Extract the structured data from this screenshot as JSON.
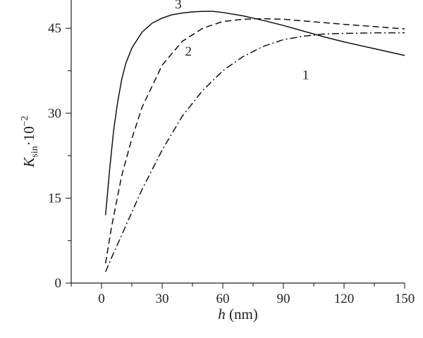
{
  "chart_data": {
    "type": "line",
    "xlabel": {
      "var": "h",
      "unit": " (nm)"
    },
    "ylabel": {
      "var": "K",
      "sub": "sin",
      "mult": "·10",
      "sup": "−2"
    },
    "xlim": [
      -15,
      150
    ],
    "ylim": [
      0,
      50
    ],
    "x_ticks": [
      0,
      30,
      60,
      90,
      120,
      150
    ],
    "y_ticks": [
      0,
      15,
      30,
      45
    ],
    "minor_ticks": true,
    "grid": false,
    "legend": "none",
    "series": [
      {
        "name": "1",
        "style": "dashdot",
        "x": [
          2,
          5,
          10,
          15,
          20,
          30,
          40,
          50,
          60,
          70,
          80,
          90,
          100,
          110,
          120,
          135,
          150
        ],
        "y": [
          2,
          4.5,
          8.5,
          12.5,
          16.5,
          23.5,
          29.5,
          34,
          37.5,
          40,
          41.8,
          43,
          43.6,
          44,
          44.1,
          44.2,
          44.2
        ]
      },
      {
        "name": "2",
        "style": "dashed",
        "x": [
          2,
          5,
          10,
          15,
          20,
          30,
          40,
          50,
          60,
          70,
          80,
          90,
          100,
          110,
          120,
          135,
          150
        ],
        "y": [
          3.5,
          10,
          19,
          25.5,
          31,
          38.5,
          42.7,
          45,
          46.2,
          46.6,
          46.7,
          46.6,
          46.3,
          46.0,
          45.7,
          45.3,
          44.9
        ]
      },
      {
        "name": "3",
        "style": "solid",
        "x": [
          2,
          4,
          6,
          8,
          10,
          12,
          15,
          20,
          25,
          30,
          35,
          40,
          45,
          50,
          55,
          60,
          70,
          80,
          90,
          100,
          110,
          120,
          135,
          150
        ],
        "y": [
          12,
          20,
          27,
          32,
          36,
          38.8,
          41.5,
          44.3,
          45.9,
          46.8,
          47.4,
          47.7,
          47.9,
          48.0,
          48.0,
          47.8,
          47.2,
          46.4,
          45.5,
          44.5,
          43.5,
          42.6,
          41.4,
          40.2
        ]
      }
    ],
    "annotations": [
      {
        "text": "1",
        "x": 101,
        "y": 36
      },
      {
        "text": "2",
        "x": 43,
        "y": 40.2
      },
      {
        "text": "3",
        "x": 38,
        "y": 48.5
      }
    ]
  }
}
